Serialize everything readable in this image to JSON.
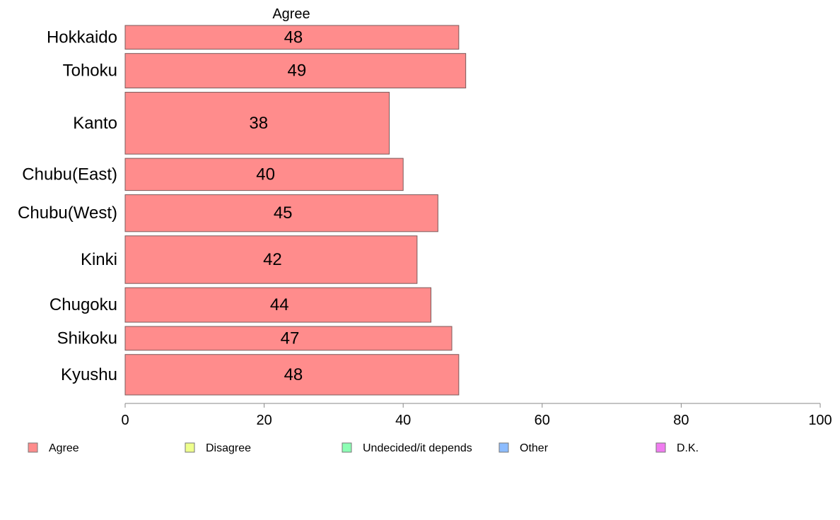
{
  "chart_data": {
    "type": "bar",
    "orientation": "horizontal",
    "title": "Agree",
    "categories": [
      "Hokkaido",
      "Tohoku",
      "Kanto",
      "Chubu(East)",
      "Chubu(West)",
      "Kinki",
      "Chugoku",
      "Shikoku",
      "Kyushu"
    ],
    "relative_widths": [
      1.0,
      1.45,
      2.6,
      1.35,
      1.55,
      2.0,
      1.45,
      1.0,
      1.7
    ],
    "series": [
      {
        "name": "Agree",
        "values": [
          48,
          49,
          38,
          40,
          45,
          42,
          44,
          47,
          48
        ]
      }
    ],
    "xlim": [
      0,
      100
    ],
    "xticks": [
      0,
      20,
      40,
      60,
      80,
      100
    ],
    "grid": false,
    "legend": {
      "placement": "bottom",
      "entries": [
        {
          "label": "Agree",
          "color": "#FF8C8C"
        },
        {
          "label": "Disagree",
          "color": "#EEFF8C"
        },
        {
          "label": "Undecided/it depends",
          "color": "#8CFFB4"
        },
        {
          "label": "Other",
          "color": "#8CBCFF"
        },
        {
          "label": "D.K.",
          "color": "#F07CF0"
        }
      ]
    },
    "colors": {
      "bar_fill": "#FF8C8C",
      "bar_stroke": "#7a5a5a",
      "axis": "#888888"
    }
  }
}
